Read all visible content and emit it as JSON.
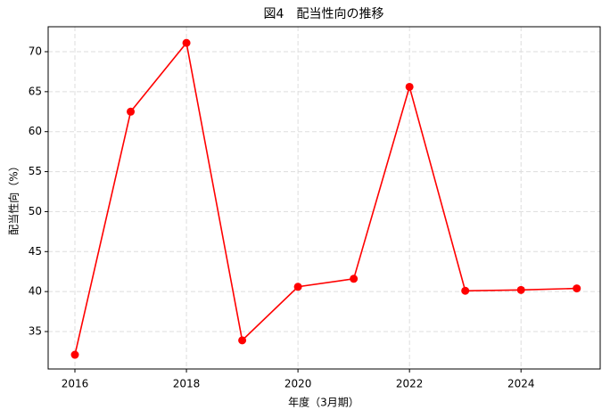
{
  "chart_data": {
    "type": "line",
    "title": "図4　配当性向の推移",
    "x_label": "年度（3月期）",
    "y_label": "配当性向（%）",
    "x": [
      2016,
      2017,
      2018,
      2019,
      2020,
      2021,
      2022,
      2023,
      2024,
      2025
    ],
    "series": [
      {
        "name": "配当性向",
        "color": "#ff0000",
        "values": [
          32.1,
          62.5,
          71.1,
          33.9,
          40.6,
          41.6,
          65.6,
          40.1,
          40.2,
          40.4
        ]
      }
    ],
    "xlim": [
      2015.52,
      2025.42
    ],
    "xticks": [
      2016,
      2018,
      2020,
      2022,
      2024
    ],
    "ylim": [
      30.32,
      73.12
    ],
    "yticks": [
      35,
      40,
      45,
      50,
      55,
      60,
      65,
      70
    ],
    "grid": true,
    "legend": false
  }
}
